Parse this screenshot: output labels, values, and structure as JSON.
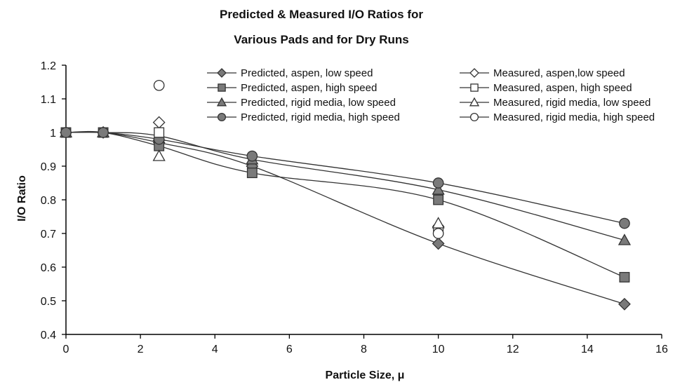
{
  "chart_data": {
    "type": "scatter",
    "title_lines": [
      "Predicted & Measured  I/O Ratios for",
      "Various Pads and for Dry Runs"
    ],
    "xlabel": "Particle Size, μ",
    "ylabel": "I/O Ratio",
    "xlim": [
      0,
      16
    ],
    "ylim": [
      0.4,
      1.2
    ],
    "xticks": [
      0,
      2,
      4,
      6,
      8,
      10,
      12,
      14,
      16
    ],
    "xtick_labels": [
      "0",
      "2",
      "4",
      "6",
      "8",
      "10",
      "12",
      "14",
      "16"
    ],
    "yticks": [
      0.4,
      0.5,
      0.6,
      0.7,
      0.8,
      0.9,
      1.0,
      1.1,
      1.2
    ],
    "ytick_labels": [
      "0.4",
      "0.5",
      "0.6",
      "0.7",
      "0.8",
      "0.9",
      "1",
      "1.1",
      "1.2"
    ],
    "grid": false,
    "legend_position": "top-right",
    "series": [
      {
        "name": "Predicted, aspen, low speed",
        "marker": "diamond",
        "filled": true,
        "line": true,
        "points": [
          [
            0,
            1.0
          ],
          [
            1,
            1.0
          ],
          [
            2.5,
            0.97
          ],
          [
            5,
            0.9
          ],
          [
            10,
            0.67
          ],
          [
            15,
            0.49
          ]
        ]
      },
      {
        "name": "Predicted, aspen, high speed",
        "marker": "square",
        "filled": true,
        "line": true,
        "points": [
          [
            0,
            1.0
          ],
          [
            1,
            1.0
          ],
          [
            2.5,
            0.96
          ],
          [
            5,
            0.88
          ],
          [
            10,
            0.8
          ],
          [
            15,
            0.57
          ]
        ]
      },
      {
        "name": "Predicted, rigid media, low speed",
        "marker": "triangle",
        "filled": true,
        "line": true,
        "points": [
          [
            0,
            1.0
          ],
          [
            1,
            1.0
          ],
          [
            2.5,
            0.99
          ],
          [
            5,
            0.92
          ],
          [
            10,
            0.83
          ],
          [
            15,
            0.68
          ]
        ]
      },
      {
        "name": "Predicted, rigid media, high speed",
        "marker": "circle",
        "filled": true,
        "line": true,
        "points": [
          [
            0,
            1.0
          ],
          [
            1,
            1.0
          ],
          [
            2.5,
            0.98
          ],
          [
            5,
            0.93
          ],
          [
            10,
            0.85
          ],
          [
            15,
            0.73
          ]
        ]
      },
      {
        "name": "Measured, aspen,low speed",
        "marker": "diamond",
        "filled": false,
        "line": false,
        "points": [
          [
            2.5,
            1.03
          ],
          [
            10,
            0.72
          ]
        ]
      },
      {
        "name": "Measured, aspen, high speed",
        "marker": "square",
        "filled": false,
        "line": false,
        "points": [
          [
            2.5,
            1.0
          ],
          [
            10,
            0.71
          ]
        ]
      },
      {
        "name": "Measured, rigid media, low speed",
        "marker": "triangle",
        "filled": false,
        "line": false,
        "points": [
          [
            2.5,
            0.93
          ],
          [
            10,
            0.73
          ]
        ]
      },
      {
        "name": "Measured, rigid media, high speed",
        "marker": "circle",
        "filled": false,
        "line": false,
        "points": [
          [
            2.5,
            1.14
          ],
          [
            10,
            0.7
          ]
        ]
      }
    ],
    "colors": {
      "line": "#333333",
      "filled_marker": "#7a7a7a",
      "open_marker": "#ffffff",
      "axis": "#000000"
    }
  }
}
